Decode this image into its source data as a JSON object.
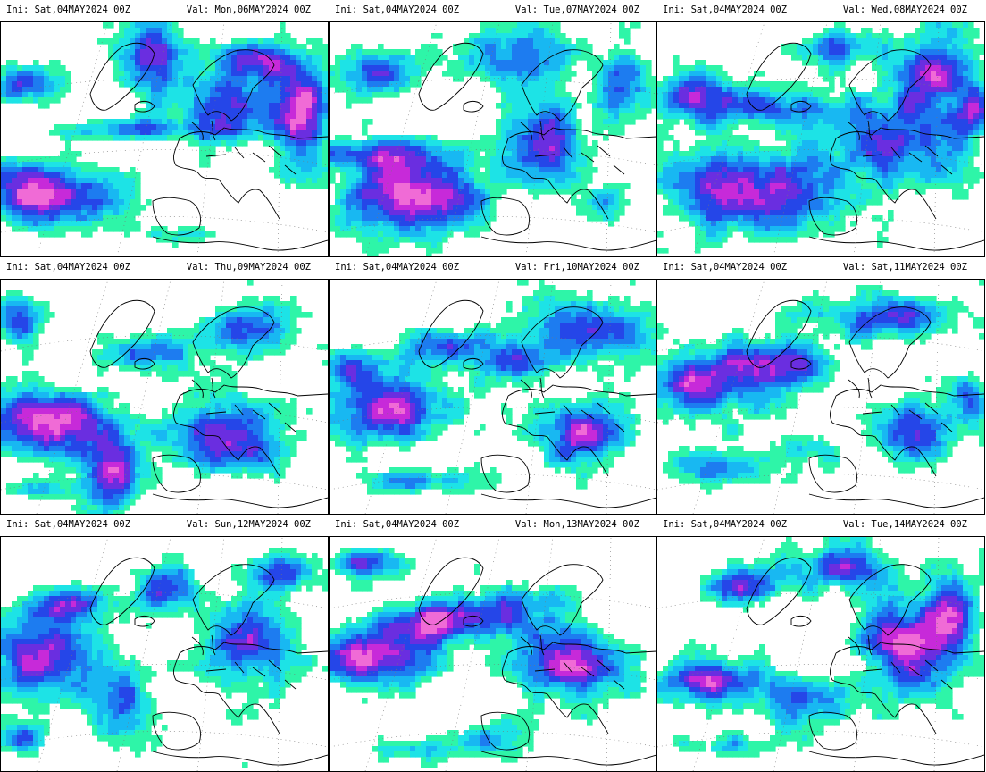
{
  "panels": [
    {
      "ini": "Ini: Sat,04MAY2024 00Z",
      "val": "Val: Mon,06MAY2024 00Z"
    },
    {
      "ini": "Ini: Sat,04MAY2024 00Z",
      "val": "Val: Tue,07MAY2024 00Z"
    },
    {
      "ini": "Ini: Sat,04MAY2024 00Z",
      "val": "Val: Wed,08MAY2024 00Z"
    },
    {
      "ini": "Ini: Sat,04MAY2024 00Z",
      "val": "Val: Thu,09MAY2024 00Z"
    },
    {
      "ini": "Ini: Sat,04MAY2024 00Z",
      "val": "Val: Fri,10MAY2024 00Z"
    },
    {
      "ini": "Ini: Sat,04MAY2024 00Z",
      "val": "Val: Sat,11MAY2024 00Z"
    },
    {
      "ini": "Ini: Sat,04MAY2024 00Z",
      "val": "Val: Sun,12MAY2024 00Z"
    },
    {
      "ini": "Ini: Sat,04MAY2024 00Z",
      "val": "Val: Mon,13MAY2024 00Z"
    },
    {
      "ini": "Ini: Sat,04MAY2024 00Z",
      "val": "Val: Tue,14MAY2024 00Z"
    }
  ],
  "colors": {
    "levels": [
      "#2ef5a8",
      "#1de3e6",
      "#18b8f2",
      "#1d7cf0",
      "#2546e8",
      "#6a2ee0",
      "#c72ad9",
      "#f06bd6"
    ]
  }
}
